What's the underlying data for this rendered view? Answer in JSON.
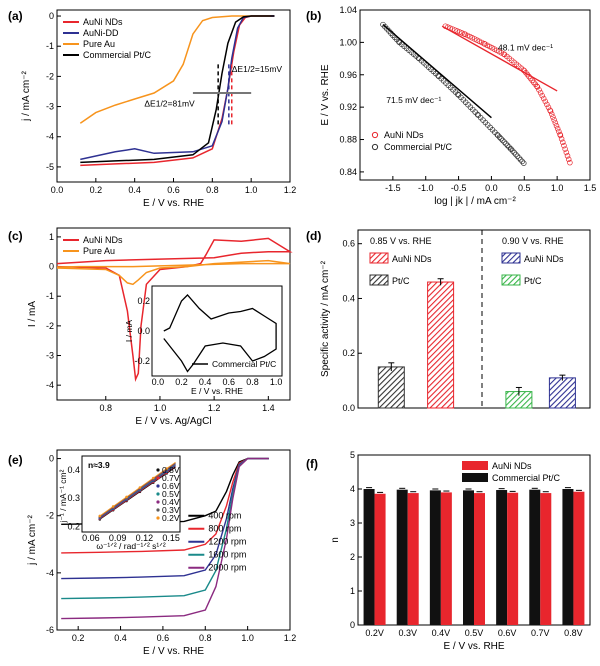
{
  "chart_data": [
    {
      "panel": "(a)",
      "type": "line",
      "xlabel": "E / V vs. RHE",
      "ylabel": "j / mA cm⁻²",
      "xlim": [
        0.0,
        1.2
      ],
      "ylim": [
        -5.5,
        0.2
      ],
      "xticks": [
        "0.0",
        "0.2",
        "0.4",
        "0.6",
        "0.8",
        "1.0",
        "1.2"
      ],
      "yticks": [
        "0",
        "-1",
        "-2",
        "-3",
        "-4",
        "-5"
      ],
      "legend": [
        "AuNi NDs",
        "AuNi-DD",
        "Pure Au",
        "Commercial Pt/C"
      ],
      "annotations": [
        "ΔE1/2=15mV",
        "ΔE1/2=81mV"
      ],
      "series": [
        {
          "name": "AuNi NDs",
          "color": "#e8262d",
          "x": [
            0.12,
            0.3,
            0.5,
            0.7,
            0.8,
            0.85,
            0.88,
            0.91,
            0.94,
            0.97,
            1.0,
            1.12
          ],
          "y": [
            -4.95,
            -4.9,
            -4.85,
            -4.7,
            -4.4,
            -3.4,
            -2.4,
            -1.2,
            -0.3,
            -0.05,
            0.0,
            0.0
          ]
        },
        {
          "name": "AuNi-DD",
          "color": "#2e3192",
          "x": [
            0.12,
            0.3,
            0.4,
            0.5,
            0.7,
            0.8,
            0.85,
            0.88,
            0.9,
            0.93,
            0.96,
            1.0,
            1.12
          ],
          "y": [
            -4.75,
            -4.5,
            -4.4,
            -4.55,
            -4.5,
            -4.3,
            -3.5,
            -2.4,
            -1.4,
            -0.4,
            -0.05,
            0.0,
            0.0
          ]
        },
        {
          "name": "Pure Au",
          "color": "#f7941d",
          "x": [
            0.12,
            0.2,
            0.3,
            0.4,
            0.5,
            0.6,
            0.65,
            0.7,
            0.75,
            0.8,
            0.9,
            1.1
          ],
          "y": [
            -3.55,
            -3.2,
            -2.95,
            -2.75,
            -2.55,
            -2.15,
            -1.6,
            -0.6,
            -0.15,
            -0.05,
            0.0,
            0.0
          ]
        },
        {
          "name": "Commercial Pt/C",
          "color": "#000000",
          "x": [
            0.12,
            0.3,
            0.5,
            0.7,
            0.78,
            0.82,
            0.85,
            0.88,
            0.92,
            0.96,
            1.0,
            1.12
          ],
          "y": [
            -4.85,
            -4.8,
            -4.75,
            -4.6,
            -4.2,
            -3.1,
            -1.9,
            -0.9,
            -0.2,
            -0.03,
            0.0,
            0.0
          ]
        }
      ]
    },
    {
      "panel": "(b)",
      "type": "scatter",
      "xlabel": "log | jk | / mA cm⁻²",
      "ylabel": "E / V vs. RHE",
      "xlim": [
        -2.0,
        1.5
      ],
      "ylim": [
        0.83,
        1.04
      ],
      "xticks": [
        "-1.5",
        "-1.0",
        "-0.5",
        "0.0",
        "0.5",
        "1.0",
        "1.5"
      ],
      "yticks": [
        "1.04",
        "1.00",
        "0.96",
        "0.92",
        "0.88",
        "0.84"
      ],
      "legend": [
        "AuNi NDs",
        "Commercial Pt/C"
      ],
      "annotations": [
        "48.1 mV dec⁻¹",
        "71.5 mV dec⁻¹"
      ],
      "series": [
        {
          "name": "AuNi NDs",
          "color": "#e8262d",
          "x": [
            -0.7,
            -0.4,
            -0.1,
            0.2,
            0.5,
            0.7,
            0.9,
            1.05,
            1.2
          ],
          "y": [
            1.02,
            1.01,
            0.998,
            0.985,
            0.965,
            0.945,
            0.915,
            0.885,
            0.85
          ]
        },
        {
          "name": "Commercial Pt/C",
          "color": "#333333",
          "x": [
            -1.65,
            -1.4,
            -1.1,
            -0.8,
            -0.5,
            -0.2,
            0.1,
            0.3,
            0.5
          ],
          "y": [
            1.022,
            1.0,
            0.98,
            0.958,
            0.935,
            0.91,
            0.885,
            0.868,
            0.85
          ]
        }
      ]
    },
    {
      "panel": "(c)",
      "type": "line",
      "xlabel": "E / V vs. Ag/AgCl",
      "ylabel": "I / mA",
      "xlim": [
        0.62,
        1.48
      ],
      "ylim": [
        -4.5,
        1.3
      ],
      "xticks": [
        "0.8",
        "1.0",
        "1.2",
        "1.4"
      ],
      "yticks": [
        "1",
        "0",
        "-1",
        "-2",
        "-3",
        "-4"
      ],
      "legend": [
        "AuNi NDs",
        "Pure Au"
      ],
      "inset": {
        "xlabel": "E / V vs. RHE",
        "ylabel": "I / mA",
        "legend": "Commercial Pt/C",
        "xticks": [
          "0.0",
          "0.2",
          "0.4",
          "0.6",
          "0.8",
          "1.0"
        ],
        "yticks": [
          "0.2",
          "0.0",
          "-0.2"
        ]
      },
      "series": [
        {
          "name": "AuNi NDs",
          "color": "#e8262d",
          "x": [
            0.62,
            0.8,
            0.85,
            0.88,
            0.9,
            0.91,
            0.92,
            0.93,
            0.95,
            1.0,
            1.1,
            1.15,
            1.17,
            1.2,
            1.3,
            1.4,
            1.48,
            1.4,
            1.3,
            1.2,
            1.0,
            0.8,
            0.62
          ],
          "y": [
            0.0,
            -0.05,
            -0.3,
            -1.5,
            -3.0,
            -3.8,
            -3.6,
            -2.0,
            -0.6,
            -0.1,
            0.0,
            0.1,
            0.4,
            0.9,
            0.85,
            0.95,
            0.5,
            0.5,
            0.45,
            0.3,
            0.25,
            0.2,
            0.1
          ]
        },
        {
          "name": "Pure Au",
          "color": "#f7941d",
          "x": [
            0.62,
            0.8,
            0.85,
            0.88,
            0.9,
            0.92,
            0.95,
            1.0,
            1.1,
            1.2,
            1.3,
            1.4,
            1.48,
            1.3,
            1.1,
            0.9,
            0.7,
            0.62
          ],
          "y": [
            -0.05,
            -0.1,
            -0.3,
            -0.55,
            -0.6,
            -0.45,
            -0.2,
            -0.05,
            0.0,
            0.1,
            0.15,
            0.2,
            0.1,
            0.1,
            0.05,
            0.0,
            0.0,
            -0.02
          ]
        }
      ]
    },
    {
      "panel": "(d)",
      "type": "bar",
      "ylabel": "Specific activity / mA cm⁻²",
      "ylim": [
        0.0,
        0.65
      ],
      "yticks": [
        "0.0",
        "0.2",
        "0.4",
        "0.6"
      ],
      "groups": [
        "0.85 V vs. RHE",
        "0.90 V vs. RHE"
      ],
      "legend": [
        "AuNi NDs",
        "Pt/C",
        "AuNi NDs",
        "Pt/C"
      ],
      "series": [
        {
          "group": "0.85 V vs. RHE",
          "name": "Pt/C",
          "color": "#333333",
          "value": 0.15,
          "error": 0.015
        },
        {
          "group": "0.85 V vs. RHE",
          "name": "AuNi NDs",
          "color": "#e8262d",
          "value": 0.46,
          "error": 0.012
        },
        {
          "group": "0.90 V vs. RHE",
          "name": "Pt/C",
          "color": "#39b54a",
          "value": 0.06,
          "error": 0.015
        },
        {
          "group": "0.90 V vs. RHE",
          "name": "AuNi NDs",
          "color": "#2e3192",
          "value": 0.11,
          "error": 0.01
        }
      ]
    },
    {
      "panel": "(e)",
      "type": "line",
      "xlabel": "E / V vs. RHE",
      "ylabel": "j / mA cm⁻²",
      "xlim": [
        0.1,
        1.2
      ],
      "ylim": [
        -6.0,
        0.3
      ],
      "xticks": [
        "0.2",
        "0.4",
        "0.6",
        "0.8",
        "1.0",
        "1.2"
      ],
      "yticks": [
        "0",
        "-2",
        "-4",
        "-6"
      ],
      "legend": [
        "400 rpm",
        "800 rpm",
        "1200 rpm",
        "1600 rpm",
        "2000 rpm"
      ],
      "series": [
        {
          "name": "400 rpm",
          "color": "#000000",
          "limit": -2.3
        },
        {
          "name": "800 rpm",
          "color": "#e8262d",
          "limit": -3.3
        },
        {
          "name": "1200 rpm",
          "color": "#2e3192",
          "limit": -4.2
        },
        {
          "name": "1600 rpm",
          "color": "#1a8a8a",
          "limit": -4.9
        },
        {
          "name": "2000 rpm",
          "color": "#8b2a80",
          "limit": -5.6
        }
      ],
      "inset": {
        "annotation": "n≈3.9",
        "xlabel": "ω⁻¹ᐟ² / rad⁻¹ᐟ² s¹ᐟ²",
        "ylabel": "j⁻¹ / mA⁻¹ cm²",
        "xticks": [
          "0.06",
          "0.09",
          "0.12",
          "0.15"
        ],
        "yticks": [
          "0.4",
          "0.3",
          "0.2"
        ],
        "legend": [
          "0.8V",
          "0.7V",
          "0.6V",
          "0.5V",
          "0.4V",
          "0.3V",
          "0.2V"
        ]
      }
    },
    {
      "panel": "(f)",
      "type": "bar",
      "xlabel": "E / V vs. RHE",
      "ylabel": "n",
      "ylim": [
        0,
        5
      ],
      "yticks": [
        "0",
        "1",
        "2",
        "3",
        "4",
        "5"
      ],
      "categories": [
        "0.2V",
        "0.3V",
        "0.4V",
        "0.5V",
        "0.6V",
        "0.7V",
        "0.8V"
      ],
      "series": [
        {
          "name": "AuNi NDs",
          "color": "#e8262d",
          "values": [
            3.86,
            3.88,
            3.9,
            3.88,
            3.89,
            3.88,
            3.92
          ]
        },
        {
          "name": "Commercial Pt/C",
          "color": "#111111",
          "values": [
            4.0,
            3.98,
            3.96,
            3.96,
            3.97,
            3.98,
            4.0
          ]
        }
      ]
    }
  ]
}
